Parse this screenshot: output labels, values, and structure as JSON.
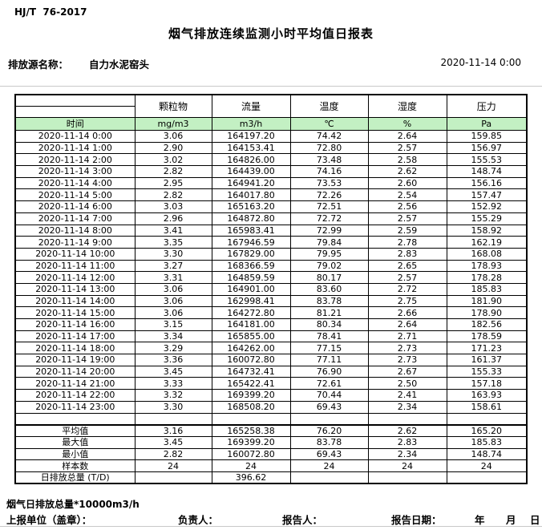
{
  "meta": {
    "standard": "HJ/T  76-2017",
    "title": "烟气排放连续监测小时平均值日报表",
    "source_label": "排放源名称：",
    "source_name": "自力水泥窑头",
    "datetime": "2020-11-14 0:00"
  },
  "colors": {
    "header_green": "#c3f0c3"
  },
  "table": {
    "time_header": "时间",
    "param_headers": [
      "颗粒物",
      "流量",
      "温度",
      "湿度",
      "压力"
    ],
    "units": [
      "mg/m3",
      "m3/h",
      "℃",
      "%",
      "Pa"
    ],
    "rows": [
      {
        "time": "2020-11-14 0:00",
        "values": [
          "3.06",
          "164197.20",
          "74.42",
          "2.64",
          "159.85"
        ]
      },
      {
        "time": "2020-11-14 1:00",
        "values": [
          "2.90",
          "164153.41",
          "72.80",
          "2.57",
          "156.97"
        ]
      },
      {
        "time": "2020-11-14 2:00",
        "values": [
          "3.02",
          "164826.00",
          "73.48",
          "2.58",
          "155.53"
        ]
      },
      {
        "time": "2020-11-14 3:00",
        "values": [
          "2.82",
          "164439.00",
          "74.16",
          "2.62",
          "148.74"
        ]
      },
      {
        "time": "2020-11-14 4:00",
        "values": [
          "2.95",
          "164941.20",
          "73.53",
          "2.60",
          "156.16"
        ]
      },
      {
        "time": "2020-11-14 5:00",
        "values": [
          "2.82",
          "164017.80",
          "72.26",
          "2.54",
          "157.47"
        ]
      },
      {
        "time": "2020-11-14 6:00",
        "values": [
          "3.03",
          "165163.20",
          "72.51",
          "2.56",
          "152.92"
        ]
      },
      {
        "time": "2020-11-14 7:00",
        "values": [
          "2.96",
          "164872.80",
          "72.72",
          "2.57",
          "155.29"
        ]
      },
      {
        "time": "2020-11-14 8:00",
        "values": [
          "3.41",
          "165983.41",
          "72.99",
          "2.59",
          "158.92"
        ]
      },
      {
        "time": "2020-11-14 9:00",
        "values": [
          "3.35",
          "167946.59",
          "79.84",
          "2.78",
          "162.19"
        ]
      },
      {
        "time": "2020-11-14 10:00",
        "values": [
          "3.30",
          "167829.00",
          "79.95",
          "2.83",
          "168.08"
        ]
      },
      {
        "time": "2020-11-14 11:00",
        "values": [
          "3.27",
          "168366.59",
          "79.02",
          "2.65",
          "178.93"
        ]
      },
      {
        "time": "2020-11-14 12:00",
        "values": [
          "3.31",
          "164859.59",
          "80.17",
          "2.57",
          "178.28"
        ]
      },
      {
        "time": "2020-11-14 13:00",
        "values": [
          "3.06",
          "164901.00",
          "83.60",
          "2.72",
          "185.83"
        ]
      },
      {
        "time": "2020-11-14 14:00",
        "values": [
          "3.06",
          "162998.41",
          "83.78",
          "2.75",
          "181.90"
        ]
      },
      {
        "time": "2020-11-14 15:00",
        "values": [
          "3.06",
          "164272.80",
          "81.21",
          "2.66",
          "178.90"
        ]
      },
      {
        "time": "2020-11-14 16:00",
        "values": [
          "3.15",
          "164181.00",
          "80.34",
          "2.64",
          "182.56"
        ]
      },
      {
        "time": "2020-11-14 17:00",
        "values": [
          "3.34",
          "165855.00",
          "78.41",
          "2.71",
          "178.59"
        ]
      },
      {
        "time": "2020-11-14 18:00",
        "values": [
          "3.29",
          "164262.00",
          "77.15",
          "2.73",
          "171.23"
        ]
      },
      {
        "time": "2020-11-14 19:00",
        "values": [
          "3.36",
          "160072.80",
          "77.11",
          "2.73",
          "161.37"
        ]
      },
      {
        "time": "2020-11-14 20:00",
        "values": [
          "3.45",
          "164732.41",
          "76.90",
          "2.67",
          "155.33"
        ]
      },
      {
        "time": "2020-11-14 21:00",
        "values": [
          "3.33",
          "165422.41",
          "72.61",
          "2.50",
          "157.18"
        ]
      },
      {
        "time": "2020-11-14 22:00",
        "values": [
          "3.32",
          "169399.20",
          "70.44",
          "2.41",
          "163.93"
        ]
      },
      {
        "time": "2020-11-14 23:00",
        "values": [
          "3.30",
          "168508.20",
          "69.43",
          "2.34",
          "158.61"
        ]
      }
    ],
    "summary": [
      {
        "label": "平均值",
        "values": [
          "3.16",
          "165258.38",
          "76.20",
          "2.62",
          "165.20"
        ]
      },
      {
        "label": "最大值",
        "values": [
          "3.45",
          "169399.20",
          "83.78",
          "2.83",
          "185.83"
        ]
      },
      {
        "label": "最小值",
        "values": [
          "2.82",
          "160072.80",
          "69.43",
          "2.34",
          "148.74"
        ]
      },
      {
        "label": "样本数",
        "values": [
          "24",
          "24",
          "24",
          "24",
          "24"
        ]
      },
      {
        "label": "日排放总量 (T/D)",
        "values": [
          "",
          "396.62",
          "",
          "",
          ""
        ]
      }
    ]
  },
  "footer": {
    "note": "烟气日排放总量*10000m3/h",
    "report_unit_label": "上报单位（盖章）：",
    "responsible_label": "负责人：",
    "reporter_label": "报告人：",
    "report_date_label": "报告日期：",
    "year_label": "年",
    "month_label": "月",
    "day_label": "日"
  }
}
